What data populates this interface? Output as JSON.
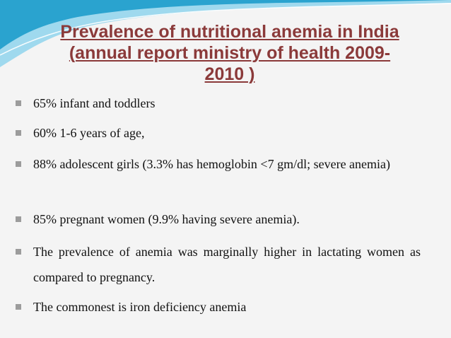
{
  "slide": {
    "title_lines": [
      "Prevalence of nutritional anemia in  India",
      "(annual report ministry of health 2009-",
      "2010 )"
    ],
    "bullets": [
      "65% infant and toddlers",
      "60% 1-6 years of age,",
      "88%  adolescent  girls  (3.3%  has  hemoglobin  <7  gm/dl; severe anemia)",
      "85% pregnant women (9.9% having severe anemia).",
      "The  prevalence  of  anemia  was  marginally  higher  in   lactating women as compared to pregnancy.",
      " The commonest is iron deficiency anemia"
    ]
  },
  "colors": {
    "title": "#8b3a3a",
    "wave_dark": "#2aa3cf",
    "wave_light": "#8fd3ec",
    "bullet_marker": "#9c9c9c",
    "background": "#f4f4f4"
  }
}
